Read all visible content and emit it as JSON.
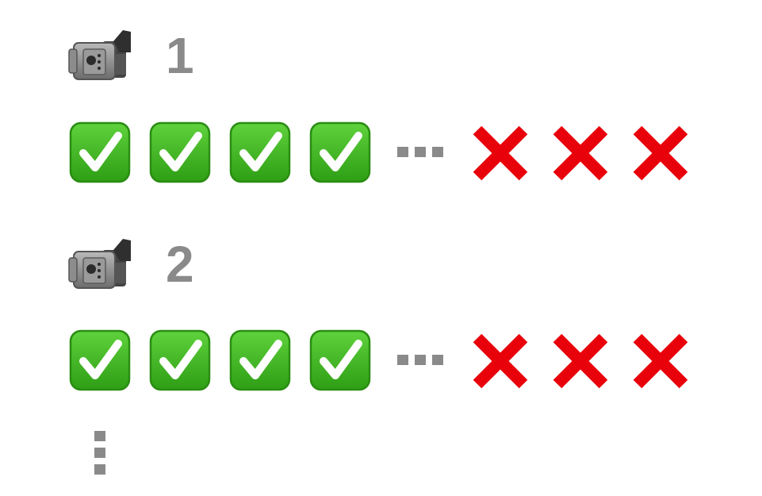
{
  "groups": [
    {
      "label": "1",
      "camera_icon": "video-camera-icon",
      "passed_icon": "green-check-box-icon",
      "passed_count": 4,
      "gap_icon": "horizontal-ellipsis-icon",
      "failed_icon": "red-cross-icon",
      "failed_count": 3
    },
    {
      "label": "2",
      "camera_icon": "video-camera-icon",
      "passed_icon": "green-check-box-icon",
      "passed_count": 4,
      "gap_icon": "horizontal-ellipsis-icon",
      "failed_icon": "red-cross-icon",
      "failed_count": 3
    }
  ],
  "continuation_icon": "vertical-ellipsis-icon",
  "colors": {
    "label_gray": "#8a8a8a",
    "check_green": "#3cb521",
    "check_green_dark": "#2d9a14",
    "cross_red": "#e8000b",
    "dots_gray": "#8a8a8a"
  }
}
